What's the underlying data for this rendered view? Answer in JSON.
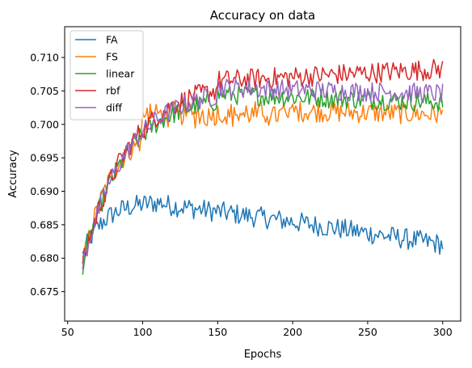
{
  "chart_data": {
    "type": "line",
    "title": "Accuracy on data",
    "xlabel": "Epochs",
    "ylabel": "Accuracy",
    "xlim": [
      48,
      312
    ],
    "ylim": [
      0.6706,
      0.7146
    ],
    "xticks": [
      50,
      100,
      150,
      200,
      250,
      300
    ],
    "yticks": [
      0.675,
      0.68,
      0.685,
      0.69,
      0.695,
      0.7,
      0.705,
      0.71
    ],
    "xtick_labels": [
      "50",
      "100",
      "150",
      "200",
      "250",
      "300"
    ],
    "ytick_labels": [
      "0.675",
      "0.680",
      "0.685",
      "0.690",
      "0.695",
      "0.700",
      "0.705",
      "0.710"
    ],
    "grid": false,
    "legend_position": "top-left",
    "series": [
      {
        "name": "FA",
        "color": "#1f77b4",
        "shape": "fa"
      },
      {
        "name": "FS",
        "color": "#ff7f0e",
        "shape": "fs"
      },
      {
        "name": "linear",
        "color": "#2ca02c",
        "shape": "linear"
      },
      {
        "name": "rbf",
        "color": "#d62728",
        "shape": "rbf"
      },
      {
        "name": "diff",
        "color": "#9467bd",
        "shape": "diff"
      }
    ],
    "x_start": 60,
    "x_end": 300
  }
}
